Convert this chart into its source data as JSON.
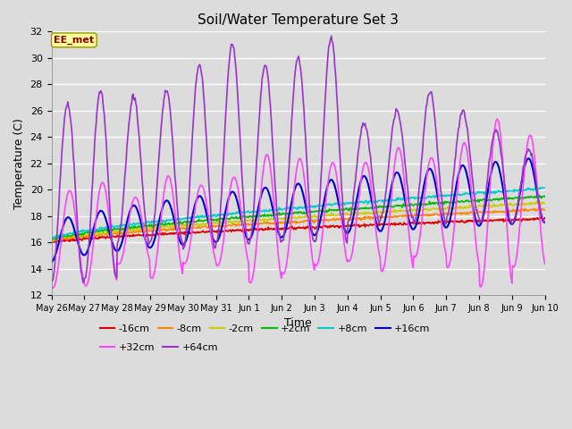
{
  "title": "Soil/Water Temperature Set 3",
  "xlabel": "Time",
  "ylabel": "Temperature (C)",
  "ylim": [
    12,
    32
  ],
  "yticks": [
    12,
    14,
    16,
    18,
    20,
    22,
    24,
    26,
    28,
    30,
    32
  ],
  "date_labels": [
    "May 26",
    "May 27",
    "May 28",
    "May 29",
    "May 30",
    "May 31",
    "Jun 1",
    "Jun 2",
    "Jun 3",
    "Jun 4",
    "Jun 5",
    "Jun 6",
    "Jun 7",
    "Jun 8",
    "Jun 9",
    "Jun 10"
  ],
  "annotation_text": "EE_met",
  "annotation_color": "#8B0000",
  "annotation_bg": "#FFFF99",
  "bg_color": "#DCDCDC",
  "series": [
    {
      "label": "-16cm",
      "color": "#DD0000",
      "linewidth": 1.2
    },
    {
      "label": "-8cm",
      "color": "#FF8800",
      "linewidth": 1.2
    },
    {
      "label": "-2cm",
      "color": "#CCCC00",
      "linewidth": 1.2
    },
    {
      "label": "+2cm",
      "color": "#00BB00",
      "linewidth": 1.2
    },
    {
      "label": "+8cm",
      "color": "#00CCCC",
      "linewidth": 1.2
    },
    {
      "label": "+16cm",
      "color": "#0000CC",
      "linewidth": 1.5
    },
    {
      "label": "+32cm",
      "color": "#FF44FF",
      "linewidth": 1.2
    },
    {
      "label": "+64cm",
      "color": "#9933CC",
      "linewidth": 1.2
    }
  ],
  "legend_ncol_row1": 6,
  "legend_ncol_row2": 2
}
